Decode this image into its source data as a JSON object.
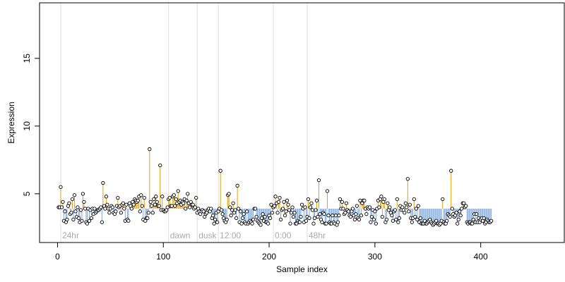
{
  "chart_data": {
    "type": "scatter",
    "title": "",
    "xlabel": "Sample index",
    "ylabel": "Expression",
    "xlim": [
      -17,
      479
    ],
    "ylim": [
      1.4,
      19.1
    ],
    "xticks": [
      0,
      100,
      200,
      300,
      400
    ],
    "yticks": [
      5,
      10,
      15
    ],
    "grid": false,
    "baseline": 3.9,
    "colors": {
      "above": "#E69F00",
      "below": "#7FA7D9",
      "point_fill": "#ffffff",
      "point_stroke": "#000000",
      "vline": "#dddddd"
    },
    "vlines": [
      {
        "x": 3,
        "label": "24hr"
      },
      {
        "x": 105,
        "label": "dawn"
      },
      {
        "x": 132,
        "label": "dusk"
      },
      {
        "x": 152,
        "label": "12:00"
      },
      {
        "x": 204,
        "label": "0:00"
      },
      {
        "x": 236,
        "label": "48hr"
      }
    ],
    "y": [
      4.0,
      4.0,
      5.5,
      4.0,
      4.4,
      3.0,
      3.7,
      2.9,
      3.1,
      4.1,
      4.3,
      3.5,
      3.6,
      4.6,
      3.1,
      4.9,
      3.7,
      3.3,
      4.0,
      3.2,
      2.9,
      3.8,
      3.0,
      5.0,
      4.4,
      3.9,
      2.9,
      2.8,
      3.9,
      3.0,
      3.8,
      3.2,
      3.9,
      3.5,
      3.9,
      3.6,
      3.7,
      3.8,
      3.8,
      3.9,
      4.0,
      2.9,
      5.8,
      4.1,
      3.9,
      4.8,
      4.2,
      3.9,
      3.6,
      3.9,
      4.1,
      4.0,
      3.6,
      3.5,
      3.7,
      4.1,
      4.7,
      4.0,
      4.1,
      3.6,
      4.2,
      4.3,
      3.9,
      3.0,
      4.2,
      3.1,
      3.0,
      4.3,
      4.1,
      3.9,
      4.4,
      4.2,
      4.6,
      4.5,
      4.4,
      4.5,
      4.8,
      3.7,
      4.9,
      4.1,
      3.1,
      4.7,
      3.0,
      3.2,
      3.2,
      3.6,
      8.3,
      4.4,
      4.1,
      3.6,
      4.6,
      4.2,
      4.8,
      4.4,
      4.1,
      4.1,
      7.1,
      3.8,
      4.8,
      3.8,
      3.7,
      3.7,
      3.8,
      4.0,
      4.6,
      4.7,
      4.1,
      4.1,
      4.8,
      4.9,
      4.1,
      4.6,
      4.3,
      5.2,
      4.4,
      4.5,
      4.2,
      4.4,
      4.3,
      4.6,
      3.9,
      4.5,
      5.0,
      4.3,
      4.0,
      4.4,
      4.2,
      4.2,
      3.9,
      4.0,
      4.7,
      3.6,
      3.9,
      3.7,
      3.5,
      3.7,
      3.8,
      3.7,
      3.3,
      3.5,
      3.6,
      3.8,
      3.9,
      3.7,
      3.9,
      3.2,
      3.4,
      2.8,
      3.1,
      3.6,
      2.9,
      3.7,
      3.9,
      6.7,
      3.8,
      3.5,
      3.2,
      3.0,
      2.9,
      3.1,
      4.9,
      5.0,
      4.0,
      3.4,
      3.8,
      4.3,
      3.6,
      3.8,
      3.2,
      5.6,
      3.9,
      2.9,
      3.7,
      2.8,
      3.2,
      3.5,
      2.9,
      2.8,
      3.7,
      2.8,
      2.9,
      3.0,
      2.9,
      2.8,
      3.1,
      3.9,
      3.9,
      3.3,
      3.0,
      2.9,
      2.8,
      2.7,
      3.2,
      3.5,
      3.0,
      3.3,
      2.9,
      2.9,
      2.8,
      3.4,
      3.2,
      4.2,
      3.6,
      4.0,
      4.1,
      4.8,
      4.3,
      3.6,
      4.4,
      4.7,
      3.1,
      3.8,
      3.9,
      4.4,
      3.4,
      3.7,
      4.5,
      4.2,
      3.8,
      2.8,
      3.6,
      4.0,
      3.3,
      3.6,
      2.8,
      2.8,
      3.0,
      2.9,
      2.9,
      3.3,
      4.2,
      3.9,
      2.9,
      4.0,
      3.0,
      3.3,
      4.6,
      3.2,
      4.0,
      4.3,
      3.8,
      2.8,
      3.2,
      3.8,
      4.5,
      3.3,
      6.0,
      3.5,
      3.1,
      2.9,
      3.6,
      3.5,
      2.8,
      2.8,
      5.2,
      3.4,
      2.9,
      2.8,
      2.8,
      3.4,
      2.9,
      2.8,
      3.4,
      2.7,
      2.9,
      3.4,
      4.6,
      3.9,
      4.4,
      3.9,
      3.5,
      3.6,
      4.3,
      3.8,
      3.7,
      3.4,
      3.3,
      3.7,
      3.9,
      3.4,
      3.1,
      3.5,
      4.1,
      3.2,
      3.1,
      4.5,
      3.4,
      4.3,
      4.5,
      4.5,
      3.9,
      3.5,
      4.0,
      3.9,
      4.0,
      2.9,
      3.3,
      3.8,
      3.1,
      3.7,
      2.8,
      3.9,
      4.5,
      4.0,
      4.6,
      4.8,
      3.3,
      4.4,
      4.6,
      2.9,
      3.1,
      4.3,
      3.8,
      4.0,
      3.6,
      3.4,
      3.0,
      3.7,
      3.8,
      3.1,
      4.6,
      2.9,
      3.2,
      4.1,
      3.8,
      4.0,
      3.8,
      3.6,
      4.3,
      4.0,
      6.1,
      3.7,
      4.2,
      3.2,
      2.9,
      3.2,
      4.6,
      3.3,
      3.9,
      3.1,
      4.1,
      2.9,
      3.2,
      2.8,
      2.8,
      2.8,
      3.0,
      2.8,
      2.8,
      2.9,
      3.0,
      3.1,
      2.9,
      2.8,
      2.7,
      2.8,
      2.9,
      3.0,
      2.8,
      2.8,
      2.7,
      2.8,
      3.0,
      4.6,
      2.9,
      2.8,
      2.8,
      3.0,
      3.5,
      3.4,
      3.3,
      6.7,
      3.9,
      3.5,
      3.3,
      3.4,
      3.6,
      2.8,
      3.1,
      3.7,
      3.4,
      3.9,
      4.3,
      4.3,
      4.0,
      4.1,
      2.9,
      2.8,
      2.9,
      2.9,
      2.8,
      2.8,
      3.1,
      3.5,
      2.9,
      3.5,
      2.9,
      3.2,
      2.9,
      3.1,
      3.2,
      3.0,
      3.2,
      2.8,
      2.9,
      3.1,
      3.0,
      2.9,
      2.9,
      3.0
    ]
  }
}
